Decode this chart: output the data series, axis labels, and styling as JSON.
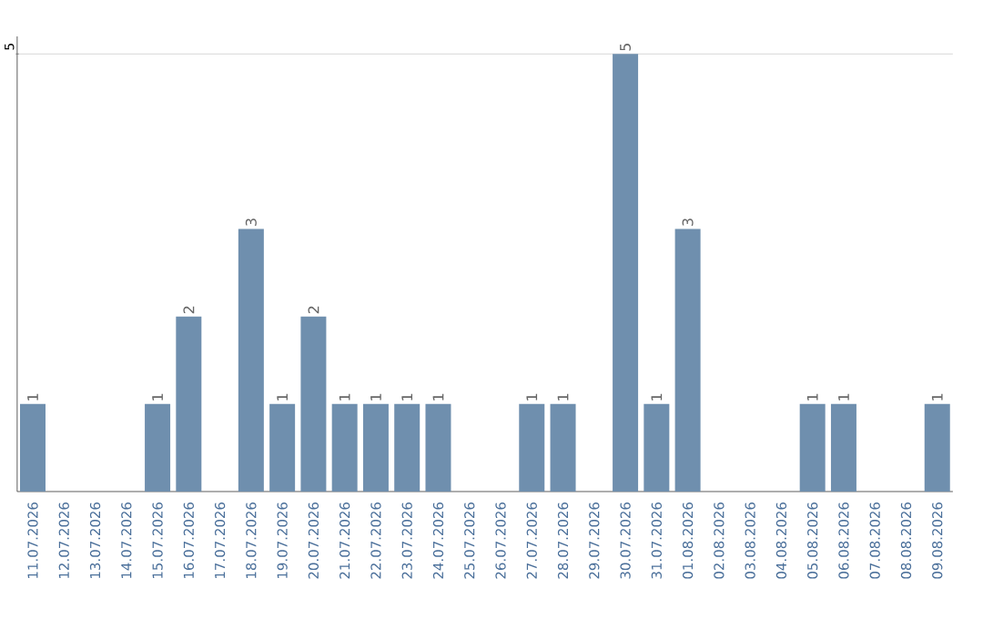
{
  "chart_data": {
    "type": "bar",
    "categories": [
      "11.07.2026",
      "12.07.2026",
      "13.07.2026",
      "14.07.2026",
      "15.07.2026",
      "16.07.2026",
      "17.07.2026",
      "18.07.2026",
      "19.07.2026",
      "20.07.2026",
      "21.07.2026",
      "22.07.2026",
      "23.07.2026",
      "24.07.2026",
      "25.07.2026",
      "26.07.2026",
      "27.07.2026",
      "28.07.2026",
      "29.07.2026",
      "30.07.2026",
      "31.07.2026",
      "01.08.2026",
      "02.08.2026",
      "03.08.2026",
      "04.08.2026",
      "05.08.2026",
      "06.08.2026",
      "07.08.2026",
      "08.08.2026",
      "09.08.2026"
    ],
    "values": [
      1,
      0,
      0,
      0,
      1,
      2,
      0,
      3,
      1,
      2,
      1,
      1,
      1,
      1,
      0,
      0,
      1,
      1,
      0,
      5,
      1,
      3,
      0,
      0,
      0,
      1,
      1,
      0,
      0,
      1
    ],
    "value_labels": [
      "1",
      null,
      null,
      null,
      "1",
      "2",
      null,
      "3",
      "1",
      "2",
      "1",
      "1",
      "1",
      "1",
      null,
      null,
      "1",
      "1",
      null,
      "5",
      "1",
      "3",
      null,
      null,
      null,
      "1",
      "1",
      null,
      null,
      "1"
    ],
    "color": "#6f8fae",
    "ylim": [
      0,
      5.2
    ],
    "yticks": [
      5
    ],
    "grid": "y"
  }
}
